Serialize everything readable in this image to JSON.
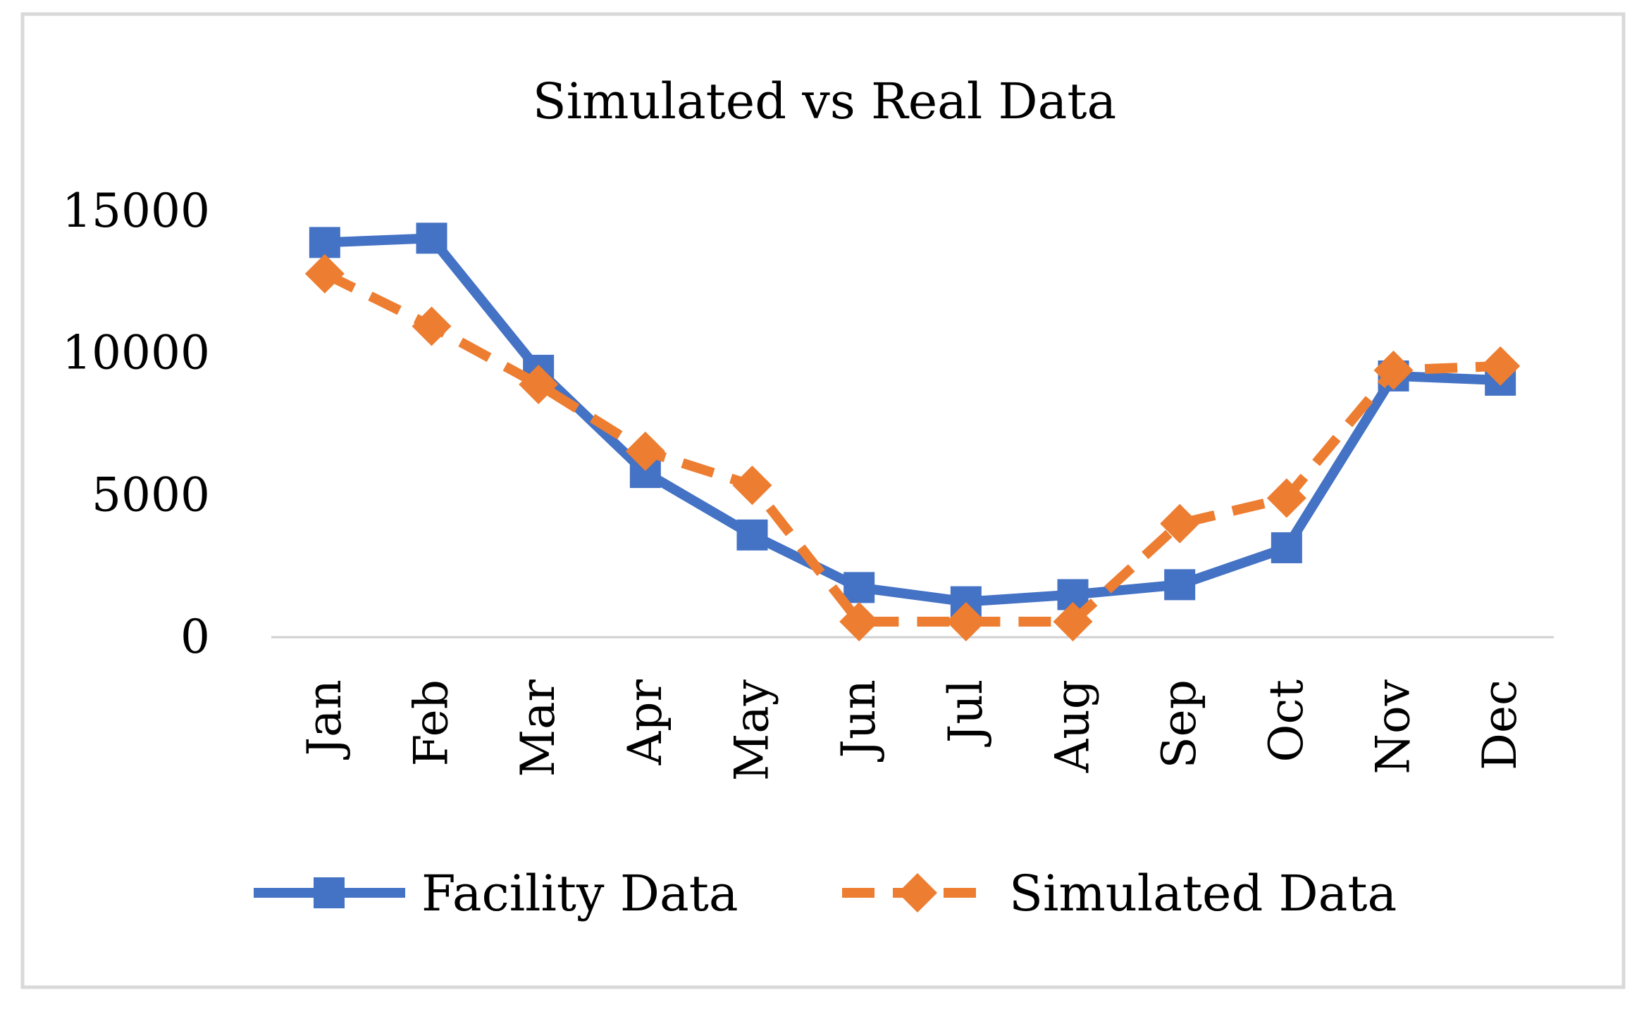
{
  "colors": {
    "facility": "#4472C4",
    "simulated": "#ED7D31",
    "axis": "#D0D0D0",
    "border": "#D9D9D9"
  },
  "chart_data": {
    "type": "line",
    "title": "Simulated vs Real Data",
    "xlabel": "",
    "ylabel": "",
    "categories": [
      "Jan",
      "Feb",
      "Mar",
      "Apr",
      "May",
      "Jun",
      "Jul",
      "Aug",
      "Sep",
      "Oct",
      "Nov",
      "Dec"
    ],
    "ylim": [
      0,
      15000
    ],
    "yticks": [
      "0",
      "5000",
      "10000",
      "15000"
    ],
    "grid": false,
    "legend_position": "bottom",
    "series": [
      {
        "name": "Facility Data",
        "marker": "square",
        "line_style": "solid",
        "values": [
          13900,
          14050,
          9400,
          5800,
          3600,
          1750,
          1250,
          1500,
          1850,
          3150,
          9200,
          9050
        ]
      },
      {
        "name": "Simulated Data",
        "marker": "diamond",
        "line_style": "dashed",
        "values": [
          12800,
          10950,
          8900,
          6550,
          5350,
          550,
          550,
          550,
          4000,
          4900,
          9400,
          9550
        ]
      }
    ]
  }
}
